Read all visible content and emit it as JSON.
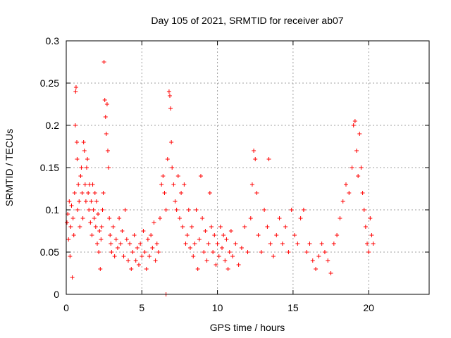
{
  "chart_data": {
    "type": "scatter",
    "title": "Day 105 of 2021, SRMTID for receiver ab07",
    "xlabel": "GPS time / hours",
    "ylabel": "SRMTID / TECUs",
    "xlim": [
      0,
      24
    ],
    "ylim": [
      0,
      0.3
    ],
    "xticks": [
      0,
      5,
      10,
      15,
      20
    ],
    "yticks": [
      0,
      0.05,
      0.1,
      0.15,
      0.2,
      0.25,
      0.3
    ],
    "xtick_labels": [
      "0",
      "5",
      "10",
      "15",
      "20"
    ],
    "ytick_labels": [
      "0",
      "0.05",
      "0.1",
      "0.15",
      "0.2",
      "0.25",
      "0.3"
    ],
    "grid": true,
    "marker": "+",
    "color": "#ff0000",
    "series": [
      {
        "name": "SRMTID",
        "points": [
          [
            0.05,
            0.085
          ],
          [
            0.1,
            0.095
          ],
          [
            0.15,
            0.065
          ],
          [
            0.2,
            0.11
          ],
          [
            0.25,
            0.045
          ],
          [
            0.3,
            0.08
          ],
          [
            0.35,
            0.105
          ],
          [
            0.4,
            0.02
          ],
          [
            0.45,
            0.09
          ],
          [
            0.5,
            0.07
          ],
          [
            0.55,
            0.12
          ],
          [
            0.6,
            0.2
          ],
          [
            0.62,
            0.24
          ],
          [
            0.65,
            0.245
          ],
          [
            0.7,
            0.18
          ],
          [
            0.72,
            0.16
          ],
          [
            0.75,
            0.1
          ],
          [
            0.8,
            0.13
          ],
          [
            0.85,
            0.11
          ],
          [
            0.9,
            0.08
          ],
          [
            0.95,
            0.14
          ],
          [
            1.0,
            0.15
          ],
          [
            1.05,
            0.12
          ],
          [
            1.1,
            0.09
          ],
          [
            1.15,
            0.18
          ],
          [
            1.2,
            0.17
          ],
          [
            1.25,
            0.13
          ],
          [
            1.3,
            0.11
          ],
          [
            1.35,
            0.15
          ],
          [
            1.4,
            0.16
          ],
          [
            1.45,
            0.12
          ],
          [
            1.5,
            0.1
          ],
          [
            1.55,
            0.13
          ],
          [
            1.6,
            0.085
          ],
          [
            1.65,
            0.11
          ],
          [
            1.7,
            0.07
          ],
          [
            1.75,
            0.13
          ],
          [
            1.8,
            0.1
          ],
          [
            1.85,
            0.09
          ],
          [
            1.9,
            0.12
          ],
          [
            1.95,
            0.08
          ],
          [
            2.0,
            0.11
          ],
          [
            2.05,
            0.06
          ],
          [
            2.1,
            0.095
          ],
          [
            2.15,
            0.05
          ],
          [
            2.2,
            0.075
          ],
          [
            2.25,
            0.03
          ],
          [
            2.3,
            0.065
          ],
          [
            2.35,
            0.08
          ],
          [
            2.4,
            0.1
          ],
          [
            2.45,
            0.12
          ],
          [
            2.5,
            0.275
          ],
          [
            2.55,
            0.23
          ],
          [
            2.6,
            0.21
          ],
          [
            2.65,
            0.19
          ],
          [
            2.7,
            0.225
          ],
          [
            2.75,
            0.17
          ],
          [
            2.8,
            0.15
          ],
          [
            2.85,
            0.09
          ],
          [
            2.9,
            0.07
          ],
          [
            2.95,
            0.06
          ],
          [
            3.0,
            0.05
          ],
          [
            3.1,
            0.08
          ],
          [
            3.2,
            0.045
          ],
          [
            3.3,
            0.065
          ],
          [
            3.4,
            0.055
          ],
          [
            3.5,
            0.09
          ],
          [
            3.6,
            0.06
          ],
          [
            3.7,
            0.075
          ],
          [
            3.8,
            0.045
          ],
          [
            3.9,
            0.1
          ],
          [
            4.0,
            0.065
          ],
          [
            4.1,
            0.04
          ],
          [
            4.2,
            0.06
          ],
          [
            4.3,
            0.03
          ],
          [
            4.4,
            0.05
          ],
          [
            4.5,
            0.07
          ],
          [
            4.6,
            0.04
          ],
          [
            4.7,
            0.055
          ],
          [
            4.8,
            0.035
          ],
          [
            4.9,
            0.06
          ],
          [
            5.0,
            0.045
          ],
          [
            5.1,
            0.075
          ],
          [
            5.2,
            0.05
          ],
          [
            5.3,
            0.03
          ],
          [
            5.4,
            0.065
          ],
          [
            5.5,
            0.045
          ],
          [
            5.6,
            0.07
          ],
          [
            5.7,
            0.055
          ],
          [
            5.8,
            0.085
          ],
          [
            5.9,
            0.04
          ],
          [
            6.0,
            0.06
          ],
          [
            6.1,
            0.05
          ],
          [
            6.2,
            0.09
          ],
          [
            6.3,
            0.13
          ],
          [
            6.4,
            0.14
          ],
          [
            6.5,
            0.12
          ],
          [
            6.6,
            0.1
          ],
          [
            6.7,
            0.16
          ],
          [
            6.8,
            0.24
          ],
          [
            6.85,
            0.235
          ],
          [
            6.9,
            0.22
          ],
          [
            6.95,
            0.18
          ],
          [
            7.0,
            0.15
          ],
          [
            7.1,
            0.13
          ],
          [
            7.2,
            0.11
          ],
          [
            7.3,
            0.1
          ],
          [
            7.4,
            0.14
          ],
          [
            7.5,
            0.09
          ],
          [
            7.6,
            0.12
          ],
          [
            7.7,
            0.08
          ],
          [
            7.8,
            0.13
          ],
          [
            7.9,
            0.06
          ],
          [
            8.0,
            0.07
          ],
          [
            8.1,
            0.1
          ],
          [
            8.2,
            0.055
          ],
          [
            8.3,
            0.08
          ],
          [
            8.4,
            0.045
          ],
          [
            8.5,
            0.06
          ],
          [
            8.6,
            0.1
          ],
          [
            8.7,
            0.03
          ],
          [
            8.8,
            0.065
          ],
          [
            8.9,
            0.14
          ],
          [
            9.0,
            0.09
          ],
          [
            9.1,
            0.05
          ],
          [
            9.2,
            0.075
          ],
          [
            9.3,
            0.04
          ],
          [
            9.4,
            0.06
          ],
          [
            9.5,
            0.12
          ],
          [
            9.6,
            0.08
          ],
          [
            9.7,
            0.05
          ],
          [
            9.8,
            0.07
          ],
          [
            9.9,
            0.035
          ],
          [
            10.0,
            0.06
          ],
          [
            10.1,
            0.045
          ],
          [
            10.2,
            0.08
          ],
          [
            10.3,
            0.055
          ],
          [
            10.4,
            0.07
          ],
          [
            10.5,
            0.04
          ],
          [
            10.6,
            0.065
          ],
          [
            10.7,
            0.03
          ],
          [
            10.8,
            0.05
          ],
          [
            10.9,
            0.075
          ],
          [
            11.0,
            0.045
          ],
          [
            11.2,
            0.06
          ],
          [
            11.4,
            0.035
          ],
          [
            11.6,
            0.055
          ],
          [
            11.8,
            0.08
          ],
          [
            12.0,
            0.05
          ],
          [
            12.2,
            0.09
          ],
          [
            12.3,
            0.13
          ],
          [
            12.4,
            0.17
          ],
          [
            12.5,
            0.16
          ],
          [
            12.6,
            0.12
          ],
          [
            12.7,
            0.07
          ],
          [
            12.9,
            0.05
          ],
          [
            13.1,
            0.1
          ],
          [
            13.3,
            0.08
          ],
          [
            13.4,
            0.16
          ],
          [
            13.5,
            0.06
          ],
          [
            13.7,
            0.045
          ],
          [
            13.9,
            0.07
          ],
          [
            14.1,
            0.09
          ],
          [
            14.3,
            0.06
          ],
          [
            14.5,
            0.08
          ],
          [
            14.7,
            0.05
          ],
          [
            14.9,
            0.1
          ],
          [
            15.1,
            0.07
          ],
          [
            15.3,
            0.06
          ],
          [
            15.5,
            0.09
          ],
          [
            15.7,
            0.1
          ],
          [
            15.9,
            0.05
          ],
          [
            16.1,
            0.06
          ],
          [
            16.3,
            0.04
          ],
          [
            16.5,
            0.03
          ],
          [
            16.7,
            0.045
          ],
          [
            16.9,
            0.06
          ],
          [
            17.1,
            0.05
          ],
          [
            17.3,
            0.04
          ],
          [
            17.5,
            0.025
          ],
          [
            17.7,
            0.06
          ],
          [
            17.9,
            0.07
          ],
          [
            18.1,
            0.09
          ],
          [
            18.3,
            0.11
          ],
          [
            18.5,
            0.13
          ],
          [
            18.7,
            0.12
          ],
          [
            18.9,
            0.15
          ],
          [
            19.0,
            0.2
          ],
          [
            19.1,
            0.205
          ],
          [
            19.2,
            0.17
          ],
          [
            19.3,
            0.14
          ],
          [
            19.4,
            0.19
          ],
          [
            19.5,
            0.15
          ],
          [
            19.6,
            0.12
          ],
          [
            19.7,
            0.1
          ],
          [
            19.8,
            0.08
          ],
          [
            19.9,
            0.06
          ],
          [
            20.0,
            0.05
          ],
          [
            20.1,
            0.09
          ],
          [
            20.2,
            0.07
          ],
          [
            20.3,
            0.06
          ],
          [
            6.6,
            0.0
          ]
        ]
      }
    ]
  }
}
